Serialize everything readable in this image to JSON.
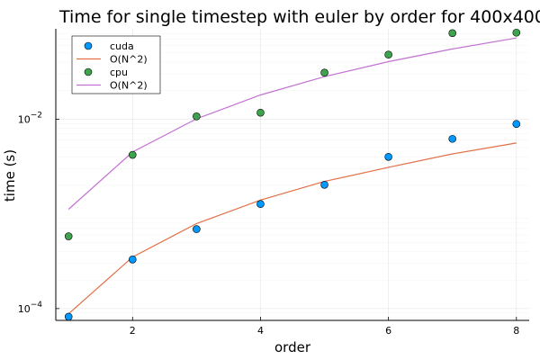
{
  "chart_data": {
    "type": "scatter",
    "title": "Time for single timestep with euler by order for 400x400",
    "xlabel": "order",
    "ylabel": "time (s)",
    "yscale": "log",
    "xlim": [
      0.8,
      8.2
    ],
    "ylim": [
      7.5e-05,
      0.09
    ],
    "x_ticks": [
      2,
      4,
      6,
      8
    ],
    "y_ticks": [
      {
        "value": 0.0001,
        "base": "10",
        "exp": "−4"
      },
      {
        "value": 0.01,
        "base": "10",
        "exp": "−2"
      }
    ],
    "grid": true,
    "legend_position": "top-left",
    "x": [
      1,
      2,
      3,
      4,
      5,
      6,
      7,
      8
    ],
    "series": [
      {
        "name": "cuda",
        "kind": "markers",
        "color": "#0099ff",
        "values": [
          8.2e-05,
          0.00033,
          0.00069,
          0.00127,
          0.00203,
          0.004,
          0.0062,
          0.0089
        ]
      },
      {
        "name": "O(N^2)",
        "kind": "line",
        "color": "#e26f46",
        "values": [
          8.8e-05,
          0.00035,
          0.00079,
          0.0014,
          0.0022,
          0.0031,
          0.0043,
          0.0056
        ]
      },
      {
        "name": "cpu",
        "kind": "markers",
        "color": "#3da44d",
        "values": [
          0.00058,
          0.0042,
          0.0107,
          0.0117,
          0.031,
          0.048,
          0.081,
          0.082
        ]
      },
      {
        "name": "O(N^2)",
        "kind": "line",
        "color": "#c271d2",
        "values": [
          0.00112,
          0.0045,
          0.0101,
          0.018,
          0.0281,
          0.0405,
          0.0551,
          0.072
        ]
      }
    ]
  }
}
